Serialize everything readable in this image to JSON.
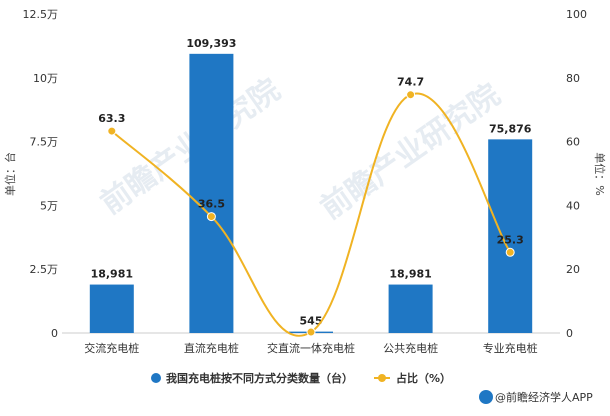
{
  "chart_data": {
    "type": "bar+line",
    "categories": [
      "交流充电桩",
      "直流充电桩",
      "交直流一体充电桩",
      "公共充电桩",
      "专业充电桩"
    ],
    "series": [
      {
        "name": "我国充电桩按不同方式分类数量（台）",
        "type": "bar",
        "axis": "left",
        "color": "#1f77c4",
        "values": [
          18981,
          109393,
          545,
          18981,
          75876
        ],
        "labels": [
          "18,981",
          "109,393",
          "545",
          "18,981",
          "75,876"
        ]
      },
      {
        "name": "占比（%）",
        "type": "line",
        "axis": "right",
        "color": "#f0b323",
        "values": [
          63.3,
          36.5,
          0.3,
          74.7,
          25.3
        ],
        "labels": [
          "63.3",
          "36.5",
          "",
          "74.7",
          "25.3"
        ]
      }
    ],
    "left_axis": {
      "label": "单位：台",
      "ylim": [
        0,
        125000
      ],
      "ticks": [
        0,
        25000,
        50000,
        75000,
        100000,
        125000
      ],
      "tick_labels": [
        "0",
        "2.5万",
        "5万",
        "7.5万",
        "10万",
        "12.5万"
      ]
    },
    "right_axis": {
      "label": "单位：%",
      "ylim": [
        0,
        100
      ],
      "ticks": [
        0,
        20,
        40,
        60,
        80,
        100
      ],
      "tick_labels": [
        "0",
        "20",
        "40",
        "60",
        "80",
        "100"
      ]
    },
    "legend_position": "bottom-center",
    "grid": false
  },
  "watermark": {
    "text": "前瞻产业研究院"
  },
  "credit": {
    "text": "@前瞻经济学人APP"
  }
}
